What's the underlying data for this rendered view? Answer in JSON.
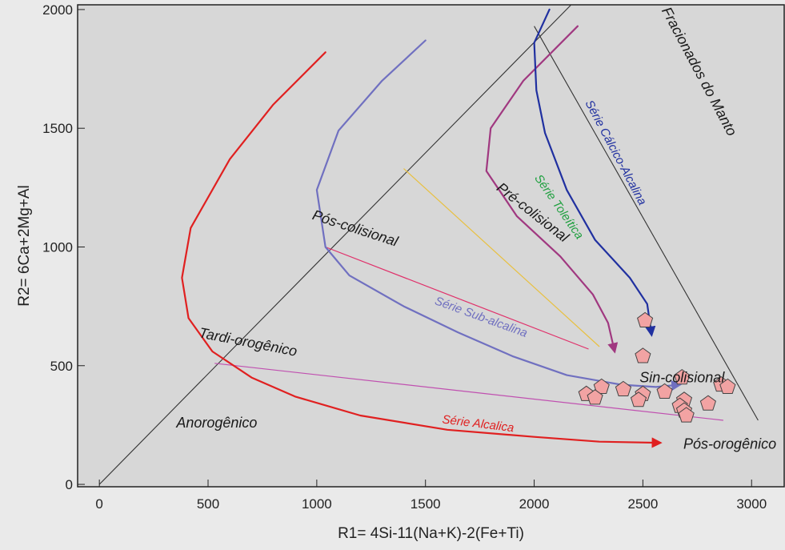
{
  "chart_data": {
    "type": "scatter",
    "title": "",
    "xlabel": "R1= 4Si-11(Na+K)-2(Fe+Ti)",
    "ylabel": "R2= 6Ca+2Mg+Al",
    "xlim": [
      -100,
      3150
    ],
    "ylim": [
      -10,
      2020
    ],
    "x_ticks": [
      0,
      500,
      1000,
      1500,
      2000,
      2500,
      3000
    ],
    "x_tick_labels": [
      "0",
      "500",
      "1000",
      "1500",
      "2000",
      "2500",
      "3000"
    ],
    "y_ticks": [
      0,
      500,
      1000,
      1500,
      2000
    ],
    "y_tick_labels": [
      "0",
      "500",
      "1000",
      "1500",
      "2000"
    ],
    "grid": false,
    "samples": [
      {
        "x": 2510,
        "y": 690
      },
      {
        "x": 2500,
        "y": 540
      },
      {
        "x": 2680,
        "y": 450
      },
      {
        "x": 2860,
        "y": 420
      },
      {
        "x": 2890,
        "y": 410
      },
      {
        "x": 2310,
        "y": 410
      },
      {
        "x": 2410,
        "y": 400
      },
      {
        "x": 2600,
        "y": 390
      },
      {
        "x": 2500,
        "y": 380
      },
      {
        "x": 2240,
        "y": 380
      },
      {
        "x": 2280,
        "y": 365
      },
      {
        "x": 2480,
        "y": 355
      },
      {
        "x": 2690,
        "y": 355
      },
      {
        "x": 2800,
        "y": 340
      },
      {
        "x": 2670,
        "y": 330
      },
      {
        "x": 2690,
        "y": 310
      },
      {
        "x": 2700,
        "y": 290
      }
    ],
    "boundaries": [
      {
        "points": [
          [
            0,
            0
          ],
          [
            2170,
            2020
          ]
        ]
      },
      {
        "points": [
          [
            2000,
            1930
          ],
          [
            3030,
            270
          ]
        ]
      }
    ],
    "tie_lines": [
      {
        "color": "#e0306a",
        "points": [
          [
            1040,
            1000
          ],
          [
            2250,
            570
          ]
        ]
      },
      {
        "color": "#e8c040",
        "points": [
          [
            1400,
            1330
          ],
          [
            2300,
            580
          ]
        ]
      },
      {
        "color": "#c050b0",
        "points": [
          [
            530,
            510
          ],
          [
            2870,
            270
          ]
        ]
      }
    ],
    "series": [
      {
        "name": "Série Alcalica",
        "color": "#e02020",
        "arrow": true,
        "points": [
          [
            1040,
            1820
          ],
          [
            800,
            1600
          ],
          [
            600,
            1370
          ],
          [
            420,
            1080
          ],
          [
            380,
            870
          ],
          [
            410,
            700
          ],
          [
            520,
            560
          ],
          [
            700,
            450
          ],
          [
            900,
            370
          ],
          [
            1200,
            290
          ],
          [
            1600,
            230
          ],
          [
            2000,
            200
          ],
          [
            2300,
            180
          ],
          [
            2580,
            175
          ]
        ]
      },
      {
        "name": "Série Sub-alcalina",
        "color": "#7070c0",
        "arrow": true,
        "points": [
          [
            1500,
            1870
          ],
          [
            1300,
            1700
          ],
          [
            1100,
            1490
          ],
          [
            1000,
            1240
          ],
          [
            1040,
            1000
          ],
          [
            1150,
            880
          ],
          [
            1400,
            750
          ],
          [
            1650,
            640
          ],
          [
            1900,
            540
          ],
          [
            2150,
            460
          ],
          [
            2400,
            420
          ],
          [
            2560,
            410
          ],
          [
            2670,
            420
          ]
        ]
      },
      {
        "name": "Série Toleítica",
        "color": "#a03880",
        "arrow": true,
        "points": [
          [
            2200,
            1930
          ],
          [
            1950,
            1700
          ],
          [
            1800,
            1500
          ],
          [
            1780,
            1320
          ],
          [
            1920,
            1130
          ],
          [
            2120,
            960
          ],
          [
            2270,
            800
          ],
          [
            2340,
            680
          ],
          [
            2370,
            560
          ]
        ]
      },
      {
        "name": "Série Cálcico-Alcalina",
        "color": "#2030a0",
        "arrow": true,
        "points": [
          [
            2070,
            2000
          ],
          [
            2000,
            1860
          ],
          [
            2010,
            1660
          ],
          [
            2050,
            1480
          ],
          [
            2150,
            1240
          ],
          [
            2280,
            1030
          ],
          [
            2440,
            870
          ],
          [
            2520,
            760
          ],
          [
            2540,
            630
          ]
        ]
      }
    ],
    "field_labels": [
      {
        "text": "Fracionados do Manto",
        "x": 2740,
        "y": 1730,
        "angle": 62
      },
      {
        "text": "Pré-colisional",
        "x": 1980,
        "y": 1130,
        "angle": 38
      },
      {
        "text": "Pós-colisional",
        "x": 1170,
        "y": 1060,
        "angle": 18
      },
      {
        "text": "Tardi-orogênico",
        "x": 680,
        "y": 580,
        "angle": 11
      },
      {
        "text": "Anorogênico",
        "x": 540,
        "y": 240,
        "angle": 0
      },
      {
        "text": "Sin-colisional",
        "x": 2680,
        "y": 430,
        "angle": 0
      },
      {
        "text": "Pós-orogênico",
        "x": 2900,
        "y": 150,
        "angle": 0
      }
    ],
    "series_labels": [
      {
        "text": "Série Cálcico-Alcalina",
        "color": "#2030a0",
        "x": 2360,
        "y": 1390,
        "angle": 62
      },
      {
        "text": "Série Toleítica",
        "color": "#20a040",
        "x": 2100,
        "y": 1160,
        "angle": 55
      },
      {
        "text": "Série Sub-alcalina",
        "color": "#7070c0",
        "x": 1750,
        "y": 690,
        "angle": 20
      },
      {
        "text": "Série Alcalica",
        "color": "#e02020",
        "x": 1740,
        "y": 240,
        "angle": 7
      }
    ]
  }
}
